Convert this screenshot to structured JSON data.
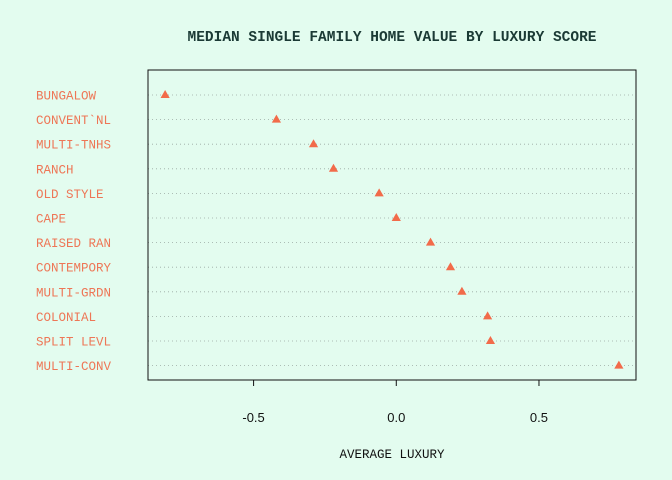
{
  "chart_data": {
    "type": "scatter",
    "title": "MEDIAN SINGLE FAMILY HOME VALUE BY LUXURY SCORE",
    "xlabel": "AVERAGE LUXURY",
    "ylabel": "",
    "xlim": [
      -0.87,
      0.84
    ],
    "xticks": [
      -0.5,
      0.0,
      0.5
    ],
    "xtick_labels": [
      "-0.5",
      "0.0",
      "0.5"
    ],
    "grid": "horizontal-dotted",
    "marker": "triangle",
    "color": "#f26b4a",
    "label_color": "#ee7656",
    "background": "#e3fcef",
    "categories": [
      "BUNGALOW",
      "CONVENT`NL",
      "MULTI-TNHS",
      "RANCH",
      "OLD STYLE",
      "CAPE",
      "RAISED RAN",
      "CONTEMPORY",
      "MULTI-GRDN",
      "COLONIAL",
      "SPLIT LEVL",
      "MULTI-CONV"
    ],
    "values": [
      -0.81,
      -0.42,
      -0.29,
      -0.22,
      -0.06,
      0.0,
      0.12,
      0.19,
      0.23,
      0.32,
      0.33,
      0.78
    ]
  }
}
